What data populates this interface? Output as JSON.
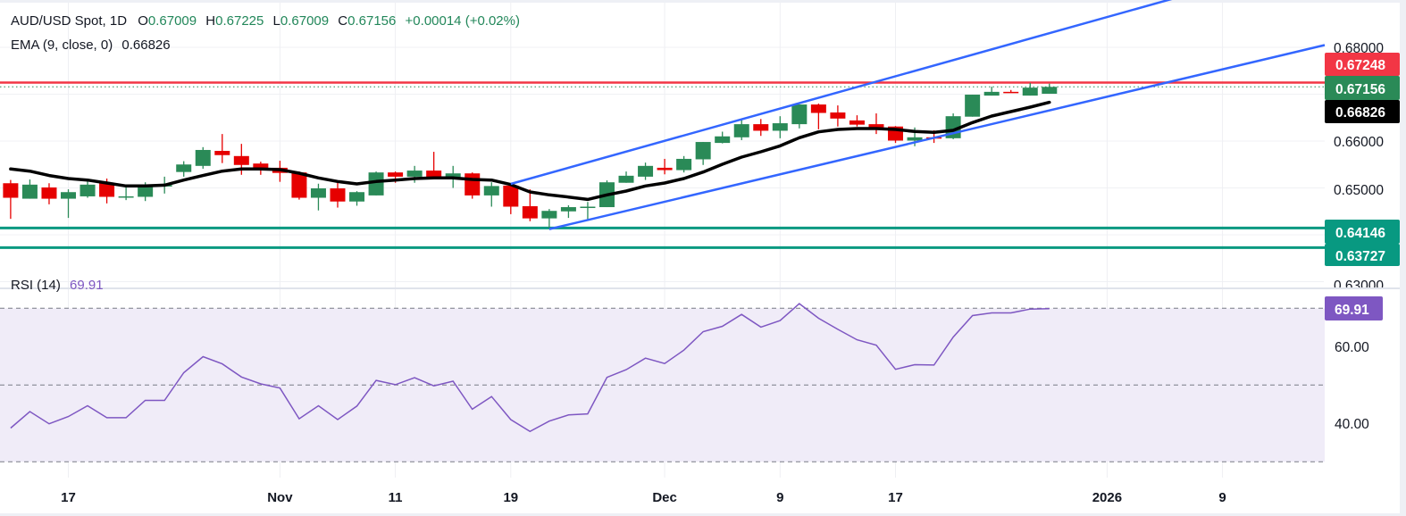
{
  "header": {
    "symbol": "AUD/USD Spot, 1D",
    "open_label": "O",
    "open": "0.67009",
    "high_label": "H",
    "high": "0.67225",
    "low_label": "L",
    "low": "0.67009",
    "close_label": "C",
    "close": "0.67156",
    "change": "+0.00014 (+0.02%)",
    "ema_label": "EMA (9, close, 0)",
    "ema_value": "0.66826"
  },
  "colors": {
    "up": "#2a8a57",
    "down": "#e60000",
    "ema": "#000000",
    "channel": "#3366ff",
    "resistance": "#f23645",
    "support": "#089981",
    "rsi": "#7e57c2",
    "rsi_band": "#f0ecf8",
    "last_price": "#2a8a57"
  },
  "price_axis": {
    "ticks": [
      "0.68000",
      "0.66000",
      "0.65000",
      "0.63000"
    ],
    "badges": {
      "resistance": "0.67248",
      "last": "0.67156",
      "ema": "0.66826",
      "support1": "0.64146",
      "support2": "0.63727"
    }
  },
  "rsi_pane": {
    "label": "RSI (14)",
    "value": "69.91",
    "ticks": [
      "60.00",
      "40.00"
    ]
  },
  "time_axis": {
    "labels": [
      {
        "text": "17",
        "date": "2025-10-17"
      },
      {
        "text": "Nov",
        "date": "2025-11-03"
      },
      {
        "text": "11",
        "date": "2025-11-11"
      },
      {
        "text": "19",
        "date": "2025-11-19"
      },
      {
        "text": "Dec",
        "date": "2025-12-01"
      },
      {
        "text": "9",
        "date": "2025-12-09"
      },
      {
        "text": "17",
        "date": "2025-12-17"
      },
      {
        "text": "2026",
        "date": "2026-01-01"
      },
      {
        "text": "9",
        "date": "2026-01-09"
      }
    ]
  },
  "chart_data": {
    "type": "candlestick",
    "title": "AUD/USD Spot, 1D",
    "ylim": [
      0.625,
      0.69
    ],
    "rsi_ylim": [
      25,
      80
    ],
    "grid": true,
    "dates": [
      "2025-10-14",
      "2025-10-15",
      "2025-10-16",
      "2025-10-17",
      "2025-10-20",
      "2025-10-21",
      "2025-10-22",
      "2025-10-23",
      "2025-10-24",
      "2025-10-27",
      "2025-10-28",
      "2025-10-29",
      "2025-10-30",
      "2025-10-31",
      "2025-11-03",
      "2025-11-04",
      "2025-11-05",
      "2025-11-06",
      "2025-11-07",
      "2025-11-10",
      "2025-11-11",
      "2025-11-12",
      "2025-11-13",
      "2025-11-14",
      "2025-11-17",
      "2025-11-18",
      "2025-11-19",
      "2025-11-20",
      "2025-11-21",
      "2025-11-24",
      "2025-11-25",
      "2025-11-26",
      "2025-11-27",
      "2025-11-28",
      "2025-12-01",
      "2025-12-02",
      "2025-12-03",
      "2025-12-04",
      "2025-12-05",
      "2025-12-08",
      "2025-12-09",
      "2025-12-10",
      "2025-12-11",
      "2025-12-12",
      "2025-12-15",
      "2025-12-16",
      "2025-12-17",
      "2025-12-18",
      "2025-12-19",
      "2025-12-22",
      "2025-12-23",
      "2025-12-24",
      "2025-12-25",
      "2025-12-26",
      "2025-12-29"
    ],
    "ohlc": [
      [
        0.651,
        0.6517,
        0.6434,
        0.6479
      ],
      [
        0.6477,
        0.6518,
        0.6477,
        0.6507
      ],
      [
        0.6501,
        0.651,
        0.6465,
        0.6477
      ],
      [
        0.6477,
        0.6497,
        0.6436,
        0.6491
      ],
      [
        0.6482,
        0.6517,
        0.6479,
        0.6507
      ],
      [
        0.651,
        0.652,
        0.6467,
        0.6481
      ],
      [
        0.6481,
        0.6506,
        0.6474,
        0.6482
      ],
      [
        0.6481,
        0.6512,
        0.6472,
        0.6507
      ],
      [
        0.6503,
        0.6524,
        0.6488,
        0.6506
      ],
      [
        0.6534,
        0.6557,
        0.6524,
        0.655
      ],
      [
        0.6547,
        0.6587,
        0.6541,
        0.6581
      ],
      [
        0.6579,
        0.6615,
        0.6553,
        0.657
      ],
      [
        0.6568,
        0.6594,
        0.6528,
        0.6549
      ],
      [
        0.6552,
        0.6556,
        0.6528,
        0.654
      ],
      [
        0.6543,
        0.6558,
        0.6513,
        0.6532
      ],
      [
        0.6533,
        0.6535,
        0.6475,
        0.6479
      ],
      [
        0.6479,
        0.6509,
        0.6452,
        0.6499
      ],
      [
        0.6499,
        0.6515,
        0.6458,
        0.6471
      ],
      [
        0.6471,
        0.6493,
        0.6462,
        0.6491
      ],
      [
        0.6484,
        0.6535,
        0.6484,
        0.6533
      ],
      [
        0.6533,
        0.6535,
        0.6511,
        0.6524
      ],
      [
        0.6524,
        0.6547,
        0.6511,
        0.6537
      ],
      [
        0.6537,
        0.6577,
        0.6519,
        0.6523
      ],
      [
        0.6523,
        0.6547,
        0.65,
        0.6531
      ],
      [
        0.6531,
        0.6533,
        0.6477,
        0.6484
      ],
      [
        0.6484,
        0.6512,
        0.646,
        0.6504
      ],
      [
        0.6505,
        0.6509,
        0.6444,
        0.646
      ],
      [
        0.6461,
        0.6497,
        0.6429,
        0.6435
      ],
      [
        0.6435,
        0.6455,
        0.6412,
        0.6451
      ],
      [
        0.645,
        0.6463,
        0.6436,
        0.6459
      ],
      [
        0.6458,
        0.647,
        0.6432,
        0.646
      ],
      [
        0.6459,
        0.6516,
        0.6459,
        0.6512
      ],
      [
        0.6511,
        0.6535,
        0.6511,
        0.6526
      ],
      [
        0.6524,
        0.6554,
        0.6517,
        0.6547
      ],
      [
        0.6543,
        0.6562,
        0.6529,
        0.6538
      ],
      [
        0.6538,
        0.6568,
        0.6533,
        0.6562
      ],
      [
        0.6561,
        0.6598,
        0.6549,
        0.6598
      ],
      [
        0.6596,
        0.662,
        0.6595,
        0.661
      ],
      [
        0.6608,
        0.6647,
        0.6602,
        0.6636
      ],
      [
        0.6636,
        0.6647,
        0.6611,
        0.6622
      ],
      [
        0.6622,
        0.6653,
        0.6606,
        0.6638
      ],
      [
        0.6636,
        0.6678,
        0.6627,
        0.6678
      ],
      [
        0.6678,
        0.668,
        0.6625,
        0.666
      ],
      [
        0.6661,
        0.6676,
        0.6631,
        0.6648
      ],
      [
        0.6644,
        0.6655,
        0.6631,
        0.6635
      ],
      [
        0.6636,
        0.6659,
        0.6615,
        0.6629
      ],
      [
        0.6631,
        0.6632,
        0.6596,
        0.6601
      ],
      [
        0.6601,
        0.6629,
        0.6589,
        0.6608
      ],
      [
        0.6608,
        0.6623,
        0.6596,
        0.6606
      ],
      [
        0.6606,
        0.6659,
        0.6604,
        0.6653
      ],
      [
        0.6652,
        0.6699,
        0.6652,
        0.6699
      ],
      [
        0.6697,
        0.6716,
        0.6697,
        0.6705
      ],
      [
        0.6705,
        0.6709,
        0.6703,
        0.6703
      ],
      [
        0.6697,
        0.6724,
        0.6697,
        0.6714
      ],
      [
        0.67009,
        0.67225,
        0.67009,
        0.67156
      ]
    ],
    "ema9": [
      0.65403,
      0.65359,
      0.65264,
      0.652,
      0.65168,
      0.65105,
      0.65041,
      0.65041,
      0.6506,
      0.65168,
      0.65264,
      0.65359,
      0.65403,
      0.65403,
      0.65391,
      0.65314,
      0.65213,
      0.65137,
      0.65086,
      0.65137,
      0.65168,
      0.652,
      0.65213,
      0.65213,
      0.65181,
      0.65168,
      0.65073,
      0.64914,
      0.64851,
      0.64806,
      0.64755,
      0.64851,
      0.64933,
      0.65041,
      0.65105,
      0.652,
      0.6534,
      0.65505,
      0.65657,
      0.65771,
      0.65898,
      0.6607,
      0.66197,
      0.66248,
      0.66267,
      0.66267,
      0.66248,
      0.66203,
      0.66184,
      0.66229,
      0.66394,
      0.66533,
      0.66628,
      0.66724,
      0.66826
    ],
    "rsi14": [
      38.8,
      43.1,
      39.9,
      41.8,
      44.6,
      41.5,
      41.5,
      46.0,
      46.0,
      53.2,
      57.4,
      55.5,
      52.1,
      50.3,
      49.2,
      41.2,
      44.6,
      41.0,
      44.5,
      51.2,
      50.1,
      51.9,
      49.8,
      51.0,
      43.7,
      47.0,
      41.0,
      37.9,
      40.6,
      42.2,
      42.5,
      52.0,
      54.0,
      57.0,
      55.6,
      59.1,
      63.9,
      65.3,
      68.4,
      65.1,
      66.8,
      71.2,
      67.4,
      64.5,
      61.8,
      60.4,
      54.1,
      55.3,
      55.2,
      62.5,
      68.1,
      68.8,
      68.8,
      69.8,
      69.91
    ],
    "rsi_levels": [
      70,
      50,
      30
    ],
    "horizontal_lines": [
      {
        "price": 0.67248,
        "role": "resistance"
      },
      {
        "price": 0.64146,
        "role": "support"
      },
      {
        "price": 0.63727,
        "role": "support"
      }
    ],
    "last_price": 0.67156,
    "trendlines": [
      {
        "role": "channel-upper",
        "points": [
          {
            "date": "2025-11-19",
            "price": 0.65086
          },
          {
            "date": "2026-01-06",
            "price": 0.6899
          }
        ],
        "extend_right": true
      },
      {
        "role": "channel-lower",
        "points": [
          {
            "date": "2025-11-21",
            "price": 0.64121
          },
          {
            "date": "2026-01-06",
            "price": 0.67238
          }
        ],
        "extend_right": true
      }
    ]
  }
}
